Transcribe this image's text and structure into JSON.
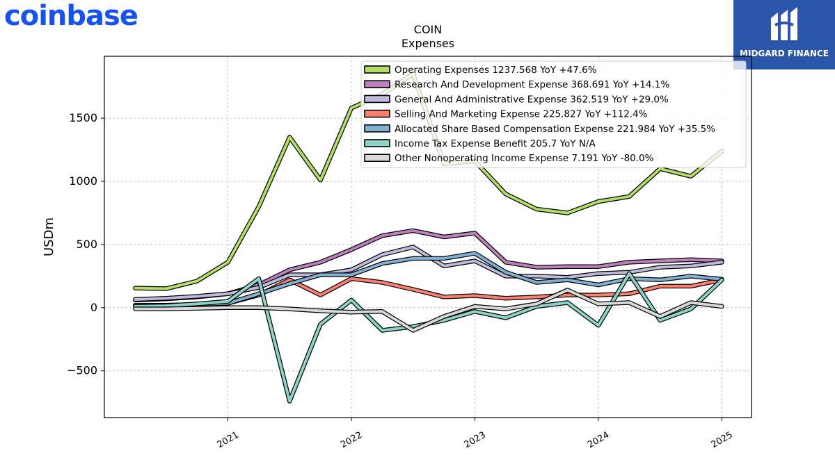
{
  "brand": {
    "left_logo": "coinbase",
    "right_logo": "MIDGARD FINANCE"
  },
  "chart_data": {
    "type": "line",
    "title": "COIN",
    "subtitle": "Expenses",
    "xlabel": "",
    "ylabel": "USDm",
    "xlim": [
      2020.0,
      2025.24
    ],
    "ylim": [
      -870,
      1990
    ],
    "yticks": [
      -500,
      0,
      500,
      1000,
      1500
    ],
    "xticks": [
      2021,
      2022,
      2023,
      2024,
      2025
    ],
    "grid": true,
    "legend_position": "top-right",
    "x": [
      2020.25,
      2020.5,
      2020.75,
      2021.0,
      2021.25,
      2021.5,
      2021.75,
      2022.0,
      2022.25,
      2022.5,
      2022.75,
      2023.0,
      2023.25,
      2023.5,
      2023.75,
      2024.0,
      2024.25,
      2024.5,
      2024.75,
      2025.0
    ],
    "series": [
      {
        "name": "Operating Expenses",
        "legend": "Operating Expenses  1237.568 YoY +47.6%",
        "color": "#b3de69",
        "values": [
          155,
          150,
          210,
          360,
          800,
          1350,
          1010,
          1580,
          1690,
          1850,
          1140,
          1160,
          900,
          780,
          750,
          840,
          880,
          1100,
          1040,
          1240
        ]
      },
      {
        "name": "Research And Development Expense",
        "legend": "Research And Development Expense  368.691 YoY +14.1%",
        "color": "#bc80bd",
        "values": [
          60,
          70,
          85,
          110,
          180,
          300,
          360,
          460,
          570,
          610,
          560,
          590,
          360,
          320,
          325,
          325,
          360,
          370,
          380,
          370
        ]
      },
      {
        "name": "General And Administrative Expense",
        "legend": "General And Administrative Expense  362.519 YoY +29.0%",
        "color": "#bebada",
        "values": [
          65,
          75,
          90,
          110,
          160,
          260,
          260,
          300,
          420,
          480,
          330,
          370,
          250,
          250,
          240,
          270,
          280,
          320,
          330,
          360
        ]
      },
      {
        "name": "Selling And Marketing Expense",
        "legend": "Selling And Marketing Expense  225.827 YoY +112.4%",
        "color": "#fb8072",
        "values": [
          20,
          20,
          25,
          35,
          100,
          220,
          100,
          230,
          200,
          145,
          85,
          95,
          75,
          85,
          100,
          100,
          110,
          170,
          170,
          220
        ]
      },
      {
        "name": "Allocated Share Based Compensation Expense",
        "legend": "Allocated Share Based Compensation Expense  221.984 YoY +35.5%",
        "color": "#80b1d3",
        "values": [
          20,
          20,
          25,
          35,
          110,
          190,
          260,
          260,
          350,
          390,
          390,
          430,
          280,
          200,
          220,
          180,
          230,
          220,
          250,
          225
        ]
      },
      {
        "name": "Income Tax Expense Benefit",
        "legend": "Income Tax Expense Benefit  205.7 YoY N/A",
        "color": "#8dd3c7",
        "values": [
          10,
          15,
          30,
          50,
          230,
          -740,
          -130,
          60,
          -180,
          -150,
          -100,
          -30,
          -80,
          10,
          40,
          -140,
          270,
          -100,
          -10,
          220
        ]
      },
      {
        "name": "Other Nonoperating Income Expense",
        "legend": "Other Nonoperating Income Expense  7.191 YoY -80.0%",
        "color": "#d9d9d9",
        "values": [
          -10,
          -10,
          -5,
          0,
          0,
          -10,
          -25,
          -35,
          -30,
          -180,
          -70,
          10,
          -10,
          30,
          140,
          30,
          40,
          -70,
          40,
          10
        ]
      }
    ]
  }
}
